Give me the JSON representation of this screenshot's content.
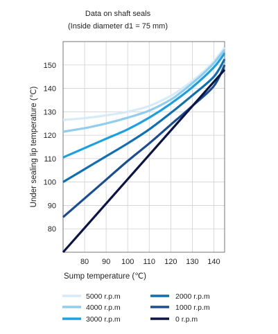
{
  "chart_data": {
    "type": "line",
    "title_lines": [
      "Data on shaft seals",
      "(Inside diameter d1 = 75 mm)"
    ],
    "xlabel": "Sump temperature  (℃)",
    "ylabel": "Under sealing lip temperature  (℃)",
    "xlim": [
      70,
      145
    ],
    "ylim": [
      70,
      160
    ],
    "xticks": [
      80,
      90,
      100,
      110,
      120,
      130,
      140
    ],
    "yticks": [
      80,
      90,
      100,
      110,
      120,
      130,
      140,
      150
    ],
    "grid": true,
    "legend_position": "bottom",
    "series": [
      {
        "name": "5000 r.p.m",
        "color": "#d6eaf8",
        "x": [
          70,
          80,
          90,
          100,
          110,
          120,
          125,
          130,
          135,
          140,
          145
        ],
        "y": [
          126.5,
          127.3,
          128.5,
          130,
          132.5,
          136.8,
          139.8,
          143.2,
          147,
          151.5,
          157.5
        ]
      },
      {
        "name": "4000 r.p.m",
        "color": "#93cdee",
        "x": [
          70,
          80,
          90,
          100,
          110,
          120,
          125,
          130,
          135,
          140,
          145
        ],
        "y": [
          121.5,
          123,
          125,
          127.5,
          130.5,
          135.2,
          138.5,
          142.2,
          146.2,
          150.8,
          156.5
        ]
      },
      {
        "name": "3000 r.p.m",
        "color": "#1ca0e0",
        "x": [
          70,
          80,
          90,
          100,
          110,
          120,
          130,
          140,
          145
        ],
        "y": [
          110.5,
          114.5,
          118.5,
          122.5,
          127.5,
          133.5,
          140.5,
          149,
          155
        ]
      },
      {
        "name": "2000 r.p.m",
        "color": "#0f6fb0",
        "x": [
          70,
          80,
          90,
          100,
          110,
          120,
          130,
          140,
          145
        ],
        "y": [
          100,
          105.5,
          111,
          116.5,
          122.5,
          129.5,
          137,
          145,
          152.5
        ]
      },
      {
        "name": "1000 r.p.m",
        "color": "#1a4d93",
        "x": [
          70,
          80,
          90,
          100,
          110,
          120,
          130,
          140,
          145
        ],
        "y": [
          85,
          93,
          101,
          109,
          116.5,
          124.5,
          132.5,
          141,
          150
        ]
      },
      {
        "name": "0 r.p.m",
        "color": "#0b1545",
        "x": [
          70,
          145
        ],
        "y": [
          70,
          148
        ]
      }
    ]
  }
}
